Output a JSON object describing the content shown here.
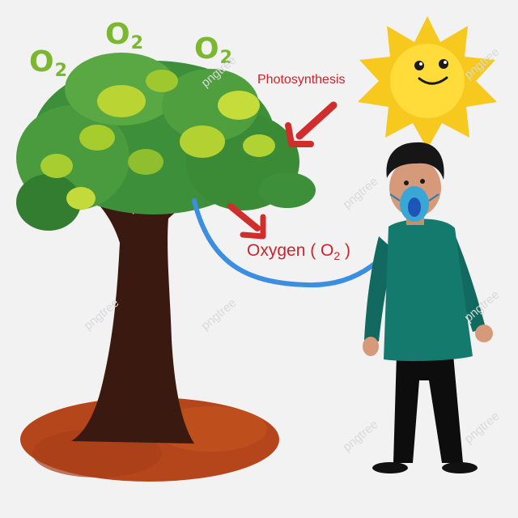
{
  "o2_marks": [
    {
      "base": "O",
      "sub": "2"
    },
    {
      "base": "O",
      "sub": "2"
    },
    {
      "base": "O",
      "sub": "2"
    }
  ],
  "labels": {
    "photosynthesis": "Photosynthesis",
    "oxygen_prefix": "Oxygen ( O",
    "oxygen_sub": "2",
    "oxygen_suffix": " )"
  },
  "watermark": "pngtree",
  "colors": {
    "background": "#f2f2f2",
    "o2_text": "#7cb82f",
    "arrow_label": "#c8252c",
    "trunk": "#3a1a10",
    "soil": "#b5451b",
    "sun": "#f7c81e",
    "hose": "#3c8fe0",
    "shirt": "#147a6e",
    "pants": "#0d0d0d"
  },
  "icons": [
    "sun-icon",
    "tree-icon",
    "person-icon",
    "oxygen-mask-icon",
    "arrow-icon"
  ]
}
